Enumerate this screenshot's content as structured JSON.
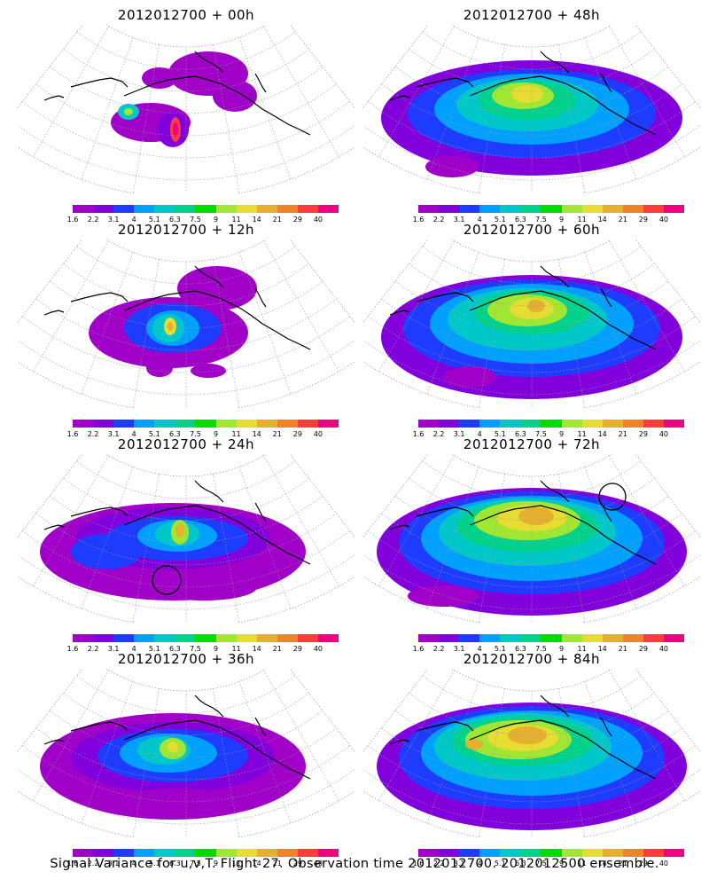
{
  "caption": "Signal Variance for u,v,T. Flight 27. Observation time 2012012700. 2012012500 ensemble.",
  "colorbar": {
    "labels": [
      "1.6",
      "2.2",
      "3.1",
      "4",
      "5.1",
      "6.3",
      "7.5",
      "9",
      "11",
      "14",
      "21",
      "29",
      "40"
    ],
    "colors": [
      "#a000c8",
      "#8200dc",
      "#1e3cff",
      "#00a0ff",
      "#00c8c8",
      "#00d28c",
      "#00dc00",
      "#a0e632",
      "#e6dc32",
      "#e6af2d",
      "#f08228",
      "#fa3c3c",
      "#f00082"
    ]
  },
  "panels": [
    {
      "title": "2012012700 + 00h",
      "level": 0
    },
    {
      "title": "2012012700 + 48h",
      "level": 4
    },
    {
      "title": "2012012700 + 12h",
      "level": 1
    },
    {
      "title": "2012012700 + 60h",
      "level": 5
    },
    {
      "title": "2012012700 + 24h",
      "level": 2
    },
    {
      "title": "2012012700 + 72h",
      "level": 6
    },
    {
      "title": "2012012700 + 36h",
      "level": 3
    },
    {
      "title": "2012012700 + 84h",
      "level": 7
    }
  ]
}
